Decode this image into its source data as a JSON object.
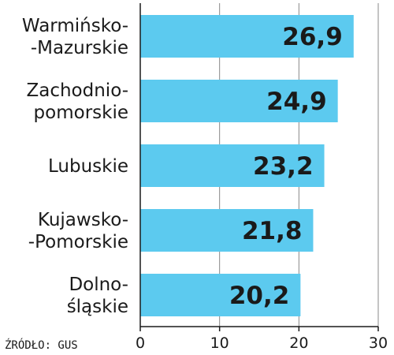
{
  "source_note": "ŹRÓDŁO: GUS",
  "chart_data": {
    "type": "bar",
    "orientation": "horizontal",
    "categories": [
      [
        "Warmińsko-",
        "-Mazurskie"
      ],
      [
        "Zachodnio-",
        "pomorskie"
      ],
      [
        "Lubuskie"
      ],
      [
        "Kujawsko-",
        "-Pomorskie"
      ],
      [
        "Dolno-",
        "śląskie"
      ]
    ],
    "values": [
      26.9,
      24.9,
      23.2,
      21.8,
      20.2
    ],
    "value_labels": [
      "26,9",
      "24,9",
      "23,2",
      "21,8",
      "20,2"
    ],
    "xlim": [
      0,
      30
    ],
    "xticks": [
      0,
      10,
      20,
      30
    ],
    "tick_labels": [
      "0",
      "10",
      "20",
      "30"
    ],
    "bar_color": "#5ccaef",
    "grid": true,
    "title": "",
    "xlabel": "",
    "ylabel": ""
  }
}
